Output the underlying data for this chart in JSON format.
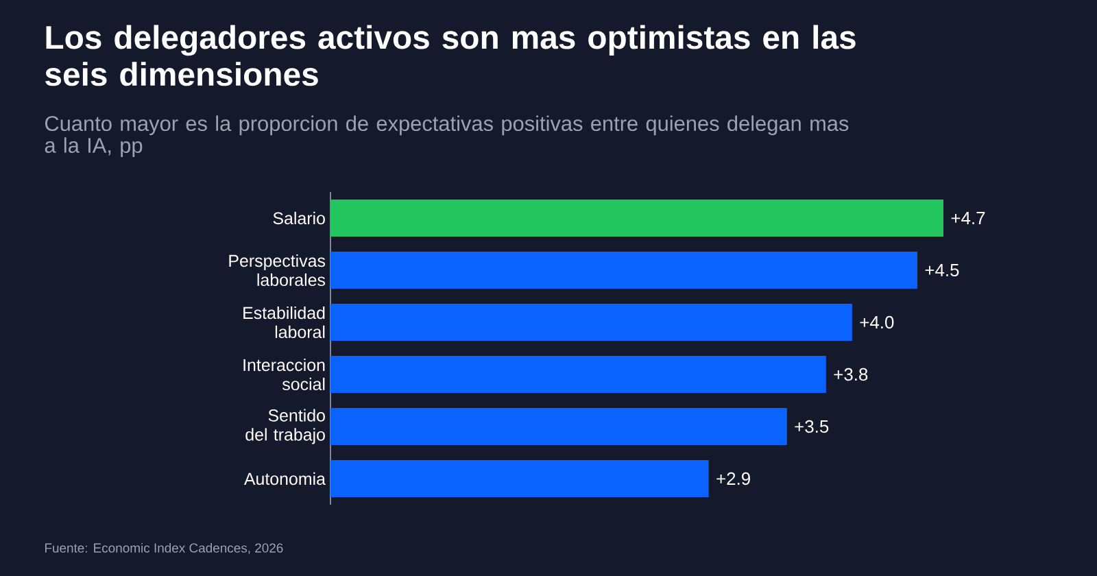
{
  "chart_data": {
    "type": "bar",
    "orientation": "horizontal",
    "title": "Los delegadores activos son mas optimistas en las seis dimensiones",
    "subtitle": "Cuanto mayor es la proporcion de expectativas positivas entre quienes delegan mas a la IA, pp",
    "categories": [
      "Salario",
      "Perspectivas laborales",
      "Estabilidad laboral",
      "Interaccion social",
      "Sentido del trabajo",
      "Autonomia"
    ],
    "values": [
      4.7,
      4.5,
      4.0,
      3.8,
      3.5,
      2.9
    ],
    "value_labels": [
      "+4.7",
      "+4.5",
      "+4.0",
      "+3.8",
      "+3.5",
      "+2.9"
    ],
    "colors": [
      "#22c55e",
      "#0a63ff",
      "#0a63ff",
      "#0a63ff",
      "#0a63ff",
      "#0a63ff"
    ],
    "xlim": [
      0,
      4.7
    ],
    "annotations": [
      "Fuente: Economic Index Cadences, 2026"
    ]
  }
}
